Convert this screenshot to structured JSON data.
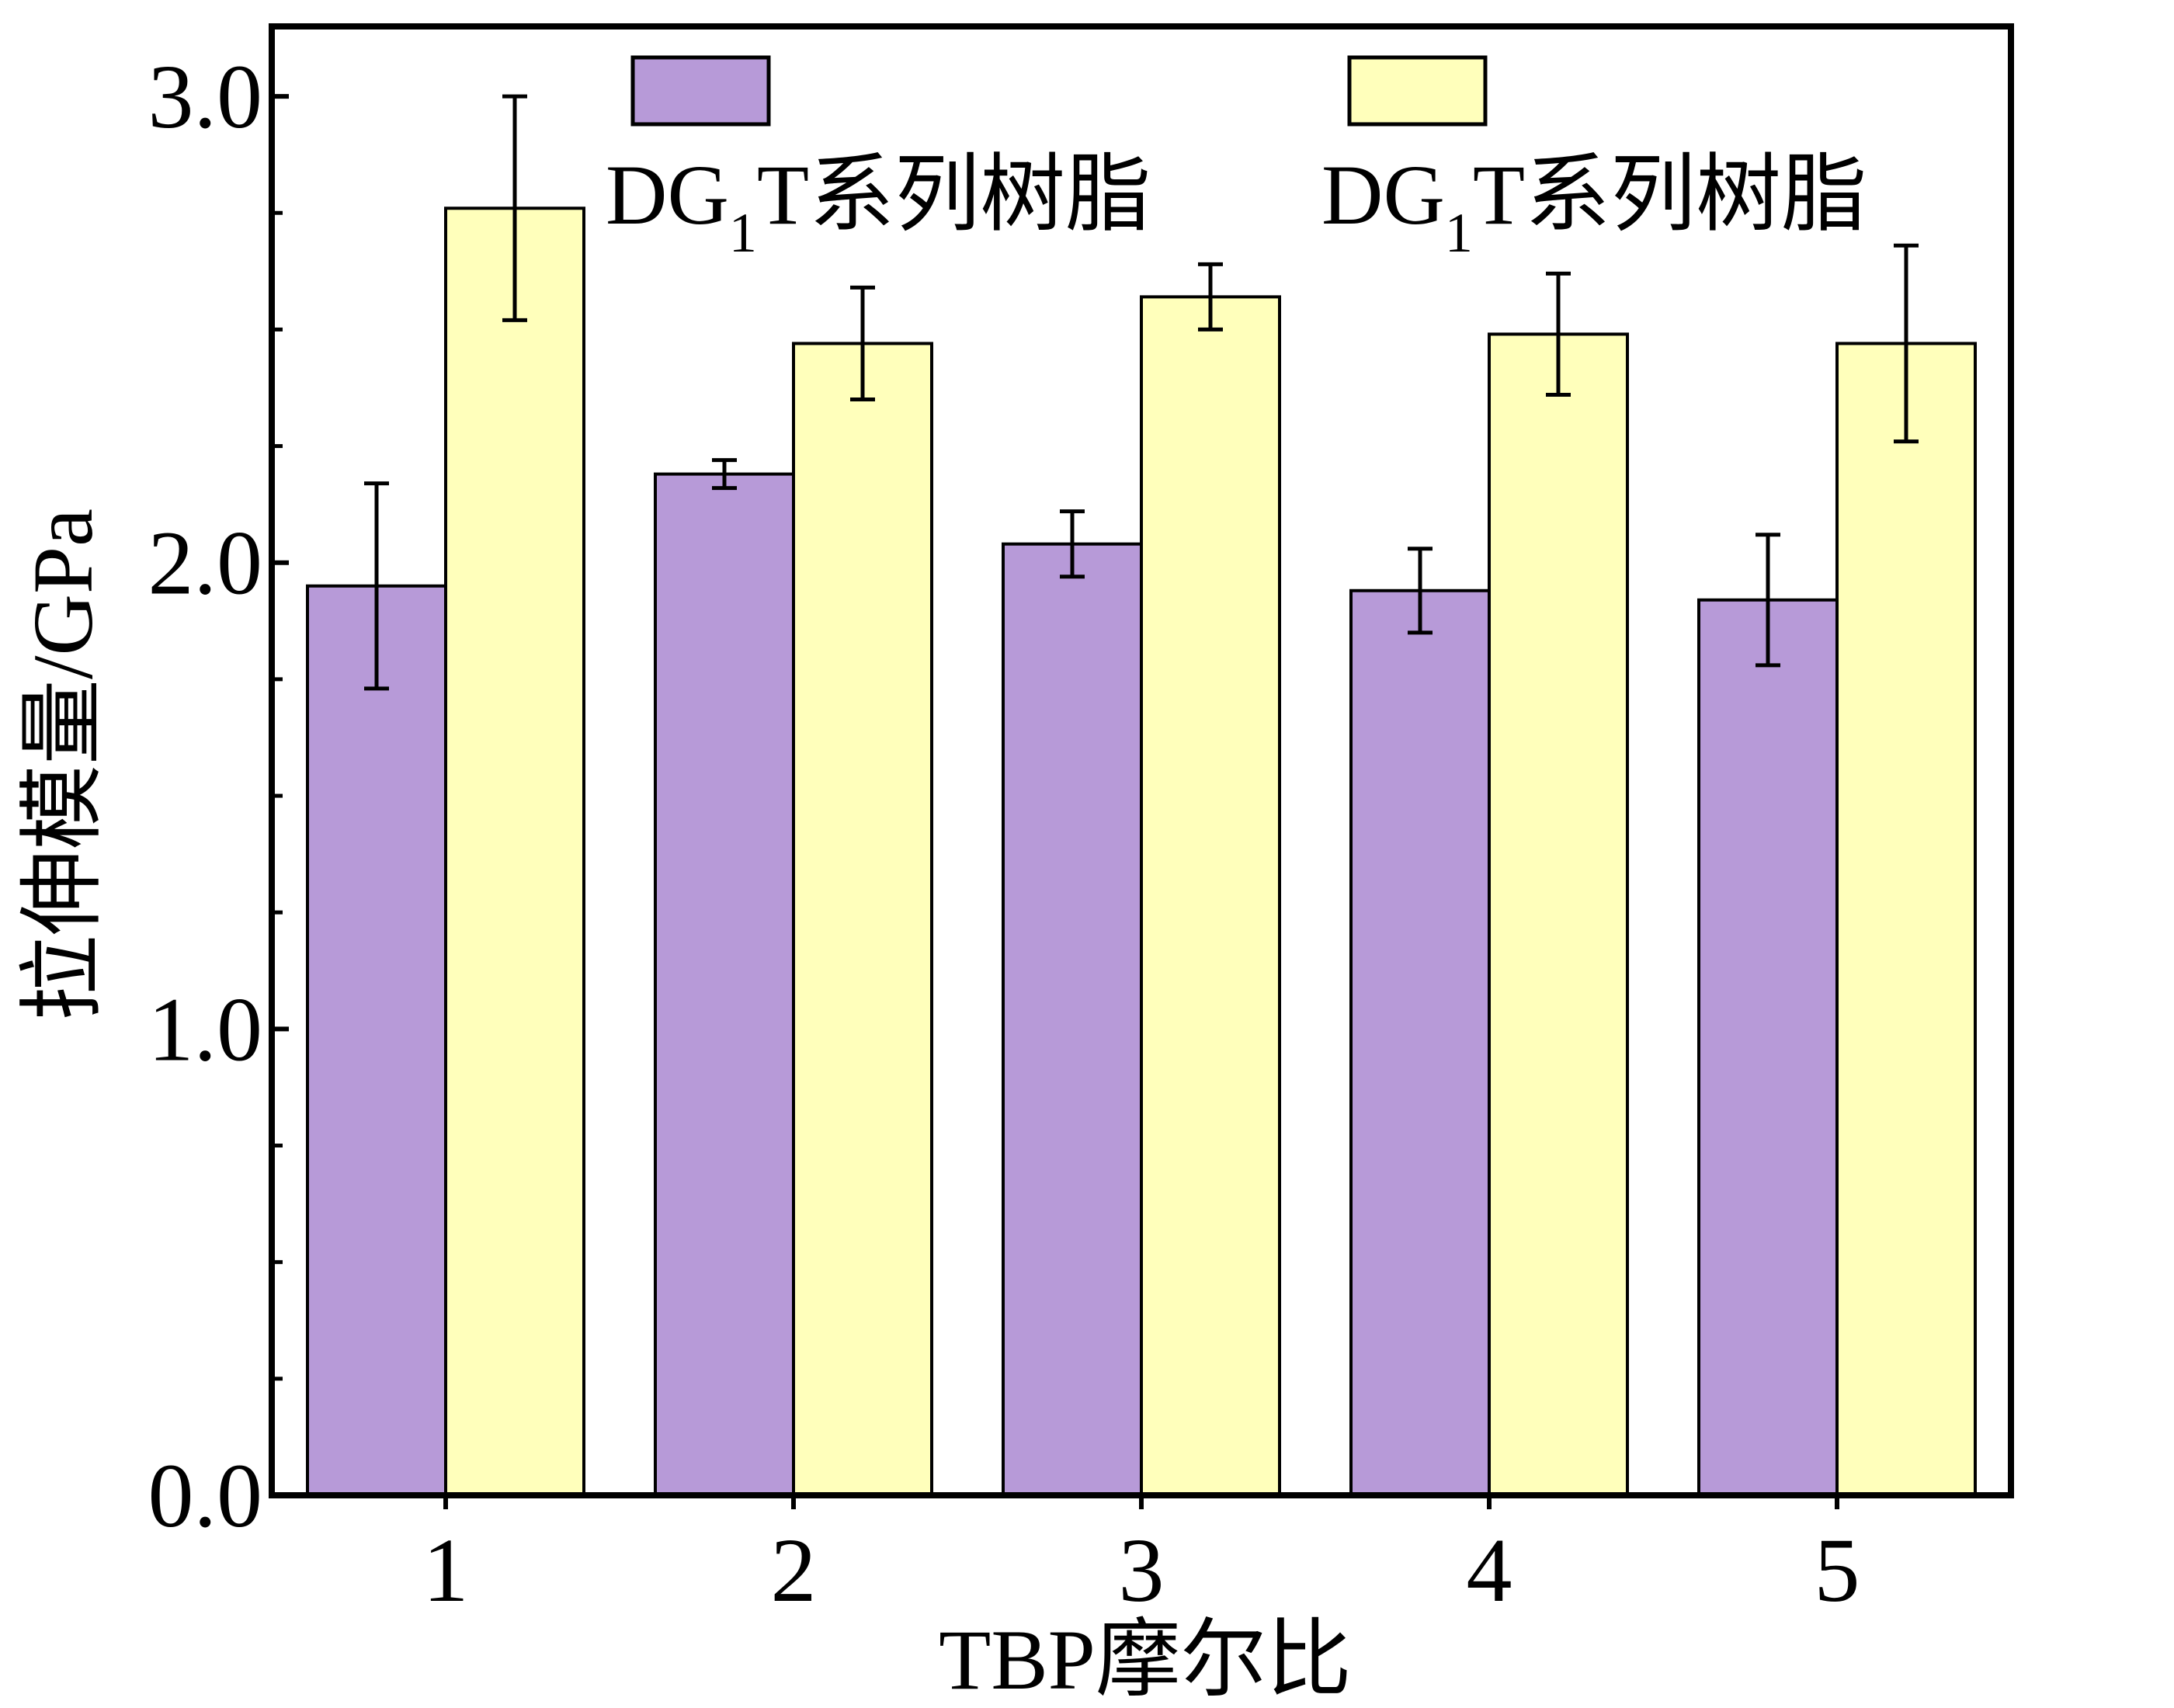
{
  "chart_data": {
    "type": "bar",
    "title": "",
    "xlabel": "TBP摩尔比",
    "ylabel": "拉伸模量/GPa",
    "categories": [
      "1",
      "2",
      "3",
      "4",
      "5"
    ],
    "ylim": [
      0.0,
      3.15
    ],
    "yticks": [
      "0.0",
      "1.0",
      "2.0",
      "3.0"
    ],
    "grid": false,
    "legend_position": "top",
    "series": [
      {
        "legend_main": "DG",
        "legend_sub": "1",
        "legend_rest": "T系列树脂",
        "color": "#b79ad8",
        "values": [
          1.95,
          2.19,
          2.04,
          1.94,
          1.92
        ],
        "errors": [
          0.22,
          0.03,
          0.07,
          0.09,
          0.14
        ]
      },
      {
        "legend_main": "DG",
        "legend_sub": "1",
        "legend_rest": "T系列树脂",
        "color": "#ffffbb",
        "values": [
          2.76,
          2.47,
          2.57,
          2.49,
          2.47
        ],
        "errors": [
          0.24,
          0.12,
          0.07,
          0.13,
          0.21
        ]
      }
    ]
  }
}
